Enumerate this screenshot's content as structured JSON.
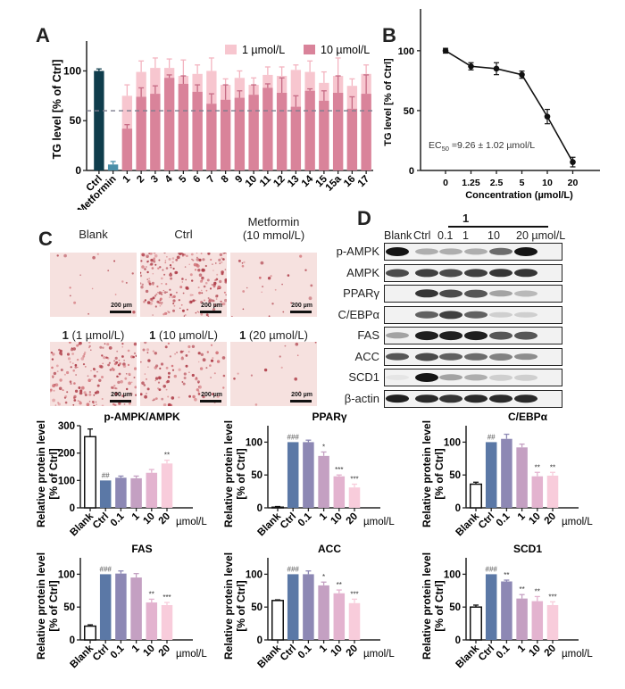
{
  "panels": {
    "A": {
      "letter": "A"
    },
    "B": {
      "letter": "B"
    },
    "C": {
      "letter": "C",
      "images": [
        {
          "title": "Blank",
          "title_bold": "",
          "density": 0.04,
          "scale": "200 µm"
        },
        {
          "title": "Ctrl",
          "title_bold": "",
          "density": 0.55,
          "scale": "200 µm"
        },
        {
          "title": "Metformin\n(10 mmol/L)",
          "title_bold": "",
          "density": 0.06,
          "scale": "200 µm"
        },
        {
          "title": " (1 µmol/L)",
          "title_bold": "1",
          "density": 0.42,
          "scale": "200 µm"
        },
        {
          "title": " (10 µmol/L)",
          "title_bold": "1",
          "density": 0.25,
          "scale": "200 µm"
        },
        {
          "title": " (20 µmol/L)",
          "title_bold": "1",
          "density": 0.03,
          "scale": "200 µm"
        }
      ]
    },
    "D": {
      "letter": "D",
      "compound_label": "1",
      "lanes": [
        "Blank",
        "Ctrl",
        "0.1",
        "1",
        "10",
        "20 µmol/L"
      ],
      "blots": [
        {
          "name": "p-AMPK",
          "intensity": [
            1.0,
            0.3,
            0.3,
            0.3,
            0.6,
            1.0
          ]
        },
        {
          "name": "AMPK",
          "intensity": [
            0.75,
            0.8,
            0.75,
            0.8,
            0.85,
            0.85
          ]
        },
        {
          "name": "PPARγ",
          "intensity": [
            0.0,
            0.85,
            0.75,
            0.7,
            0.35,
            0.25
          ]
        },
        {
          "name": "C/EBPα",
          "intensity": [
            0.0,
            0.65,
            0.8,
            0.65,
            0.15,
            0.15
          ]
        },
        {
          "name": "FAS",
          "intensity": [
            0.35,
            0.95,
            0.95,
            0.95,
            0.7,
            0.7
          ]
        },
        {
          "name": "ACC",
          "intensity": [
            0.7,
            0.75,
            0.65,
            0.6,
            0.5,
            0.45
          ]
        },
        {
          "name": "SCD1",
          "intensity": [
            0.05,
            1.0,
            0.35,
            0.3,
            0.15,
            0.15
          ]
        },
        {
          "name": "β-actin",
          "intensity": [
            0.95,
            0.9,
            0.85,
            0.9,
            0.9,
            0.9
          ]
        }
      ]
    }
  },
  "chart_data": [
    {
      "id": "A",
      "type": "bar",
      "title": "",
      "xlabel": "",
      "ylabel": "TG level [% of Ctrl]",
      "ylim": [
        0,
        130
      ],
      "yticks": [
        0,
        50,
        100
      ],
      "threshold_line": 60,
      "legend": {
        "position": "top-right",
        "entries": [
          {
            "name": "1 µmol/L",
            "color": "#f7c6cf"
          },
          {
            "name": "10 µmol/L",
            "color": "#d9839a"
          }
        ]
      },
      "controls": [
        {
          "category": "Ctrl",
          "value": 100,
          "err": 2,
          "color": "#0f3d4c"
        },
        {
          "category": "Metformin",
          "value": 6,
          "err": 3,
          "color": "#4a8fa8"
        }
      ],
      "categories": [
        "1",
        "2",
        "3",
        "4",
        "5",
        "6",
        "7",
        "8",
        "9",
        "10",
        "11",
        "12",
        "13",
        "14",
        "15",
        "15a",
        "16",
        "17"
      ],
      "series": [
        {
          "name": "1 µmol/L",
          "values": [
            75,
            99,
            103,
            103,
            95,
            97,
            100,
            86,
            93,
            86,
            96,
            95,
            101,
            99,
            88,
            95,
            85,
            97
          ],
          "errors": [
            11,
            11,
            10,
            9,
            16,
            9,
            13,
            6,
            7,
            7,
            8,
            9,
            5,
            11,
            11,
            18,
            7,
            9
          ]
        },
        {
          "name": "10 µmol/L",
          "values": [
            42,
            74,
            77,
            93,
            87,
            79,
            67,
            71,
            73,
            76,
            83,
            78,
            64,
            80,
            70,
            78,
            62,
            77
          ],
          "errors": [
            4,
            9,
            8,
            3,
            8,
            7,
            10,
            15,
            7,
            10,
            4,
            15,
            11,
            2,
            10,
            17,
            12,
            19
          ]
        }
      ]
    },
    {
      "id": "B",
      "type": "line",
      "title": "",
      "xlabel": "Concentration (µmol/L)",
      "ylabel": "TG level [% of Ctrl]",
      "ylim": [
        0,
        120
      ],
      "yticks": [
        0,
        50,
        100
      ],
      "x": [
        "0",
        "1.25",
        "2.5",
        "5",
        "10",
        "20"
      ],
      "values": [
        100,
        87,
        85,
        80,
        45,
        7
      ],
      "errors": [
        2,
        3,
        5,
        3,
        6,
        4
      ],
      "annotation": {
        "prefix": "EC",
        "subscript": "50",
        "text": " =9.26 ± 1.02 µmol/L"
      }
    },
    {
      "id": "pAMPK",
      "type": "bar",
      "title": "p-AMPK/AMPK",
      "ylabel": "Relative protein level",
      "ylabel2": "[% of Ctrl]",
      "ylim": [
        0,
        300
      ],
      "yticks": [
        0,
        100,
        200,
        300
      ],
      "categories": [
        "Blank",
        "Ctrl",
        "0.1",
        "1",
        "10",
        "20"
      ],
      "unit": "µmol/L",
      "values": [
        260,
        100,
        110,
        108,
        128,
        162
      ],
      "errors": [
        28,
        0,
        6,
        8,
        12,
        12
      ],
      "significance": [
        "",
        "##",
        "",
        "",
        "",
        "**"
      ]
    },
    {
      "id": "PPARg",
      "type": "bar",
      "title": "PPARγ",
      "ylabel": "Relative protein level",
      "ylabel2": "[% of Ctrl]",
      "ylim": [
        0,
        125
      ],
      "yticks": [
        0,
        50,
        100
      ],
      "categories": [
        "Blank",
        "Ctrl",
        "0.1",
        "1",
        "10",
        "20"
      ],
      "unit": "µmol/L",
      "values": [
        1,
        100,
        100,
        79,
        48,
        31
      ],
      "errors": [
        1,
        0,
        3,
        6,
        2,
        5
      ],
      "significance": [
        "",
        "###",
        "",
        "*",
        "***",
        "***"
      ]
    },
    {
      "id": "CEBPa",
      "type": "bar",
      "title": "C/EBPα",
      "ylabel": "Relative protein level",
      "ylabel2": "[% of Ctrl]",
      "ylim": [
        0,
        125
      ],
      "yticks": [
        0,
        50,
        100
      ],
      "categories": [
        "Blank",
        "Ctrl",
        "0.1",
        "1",
        "10",
        "20"
      ],
      "unit": "µmol/L",
      "values": [
        36,
        100,
        105,
        92,
        48,
        49
      ],
      "errors": [
        3,
        0,
        7,
        5,
        6,
        5
      ],
      "significance": [
        "",
        "##",
        "",
        "",
        "**",
        "**"
      ]
    },
    {
      "id": "FAS",
      "type": "bar",
      "title": "FAS",
      "ylabel": "Relative protein level",
      "ylabel2": "[% of Ctrl]",
      "ylim": [
        0,
        125
      ],
      "yticks": [
        0,
        50,
        100
      ],
      "categories": [
        "Blank",
        "Ctrl",
        "0.1",
        "1",
        "10",
        "20"
      ],
      "unit": "µmol/L",
      "values": [
        21,
        100,
        101,
        95,
        57,
        53
      ],
      "errors": [
        2,
        0,
        4,
        6,
        5,
        4
      ],
      "significance": [
        "",
        "###",
        "",
        "",
        "**",
        "***"
      ]
    },
    {
      "id": "ACC",
      "type": "bar",
      "title": "ACC",
      "ylabel": "Relative protein level",
      "ylabel2": "[% of Ctrl]",
      "ylim": [
        0,
        125
      ],
      "yticks": [
        0,
        50,
        100
      ],
      "categories": [
        "Blank",
        "Ctrl",
        "0.1",
        "1",
        "10",
        "20"
      ],
      "unit": "µmol/L",
      "values": [
        60,
        100,
        100,
        83,
        71,
        56
      ],
      "errors": [
        1,
        0,
        5,
        5,
        5,
        6
      ],
      "significance": [
        "",
        "###",
        "",
        "*",
        "**",
        "***"
      ]
    },
    {
      "id": "SCD1",
      "type": "bar",
      "title": "SCD1",
      "ylabel": "Relative protein level",
      "ylabel2": "[% of Ctrl]",
      "ylim": [
        0,
        125
      ],
      "yticks": [
        0,
        50,
        100
      ],
      "categories": [
        "Blank",
        "Ctrl",
        "0.1",
        "1",
        "10",
        "20"
      ],
      "unit": "µmol/L",
      "values": [
        50,
        100,
        89,
        63,
        59,
        53
      ],
      "errors": [
        3,
        0,
        2,
        6,
        7,
        5
      ],
      "significance": [
        "",
        "###",
        "**",
        "**",
        "**",
        "***"
      ]
    }
  ],
  "colors": {
    "blank_fill": "#ffffff",
    "bar_palette": [
      "#ffffff",
      "#5b78a6",
      "#8d88b4",
      "#c4a0c2",
      "#e3b3cf",
      "#f8ccdb"
    ]
  }
}
